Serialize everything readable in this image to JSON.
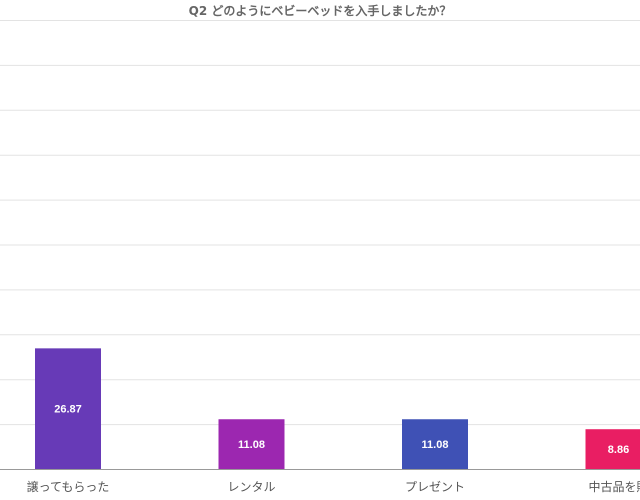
{
  "chart_data": {
    "type": "bar",
    "title": "Q2 どのようにベビーベッドを入手しましたか？",
    "categories": [
      "譲ってもらった",
      "レンタル",
      "プレゼント",
      "中古品を購"
    ],
    "values": [
      26.87,
      11.08,
      11.08,
      8.86
    ],
    "colors": [
      "#673ab7",
      "#9c27b0",
      "#3f51b5",
      "#e91e63"
    ],
    "xlabel": "",
    "ylabel": "",
    "ylim": [
      0,
      100
    ],
    "grid": true,
    "legend": "none"
  }
}
